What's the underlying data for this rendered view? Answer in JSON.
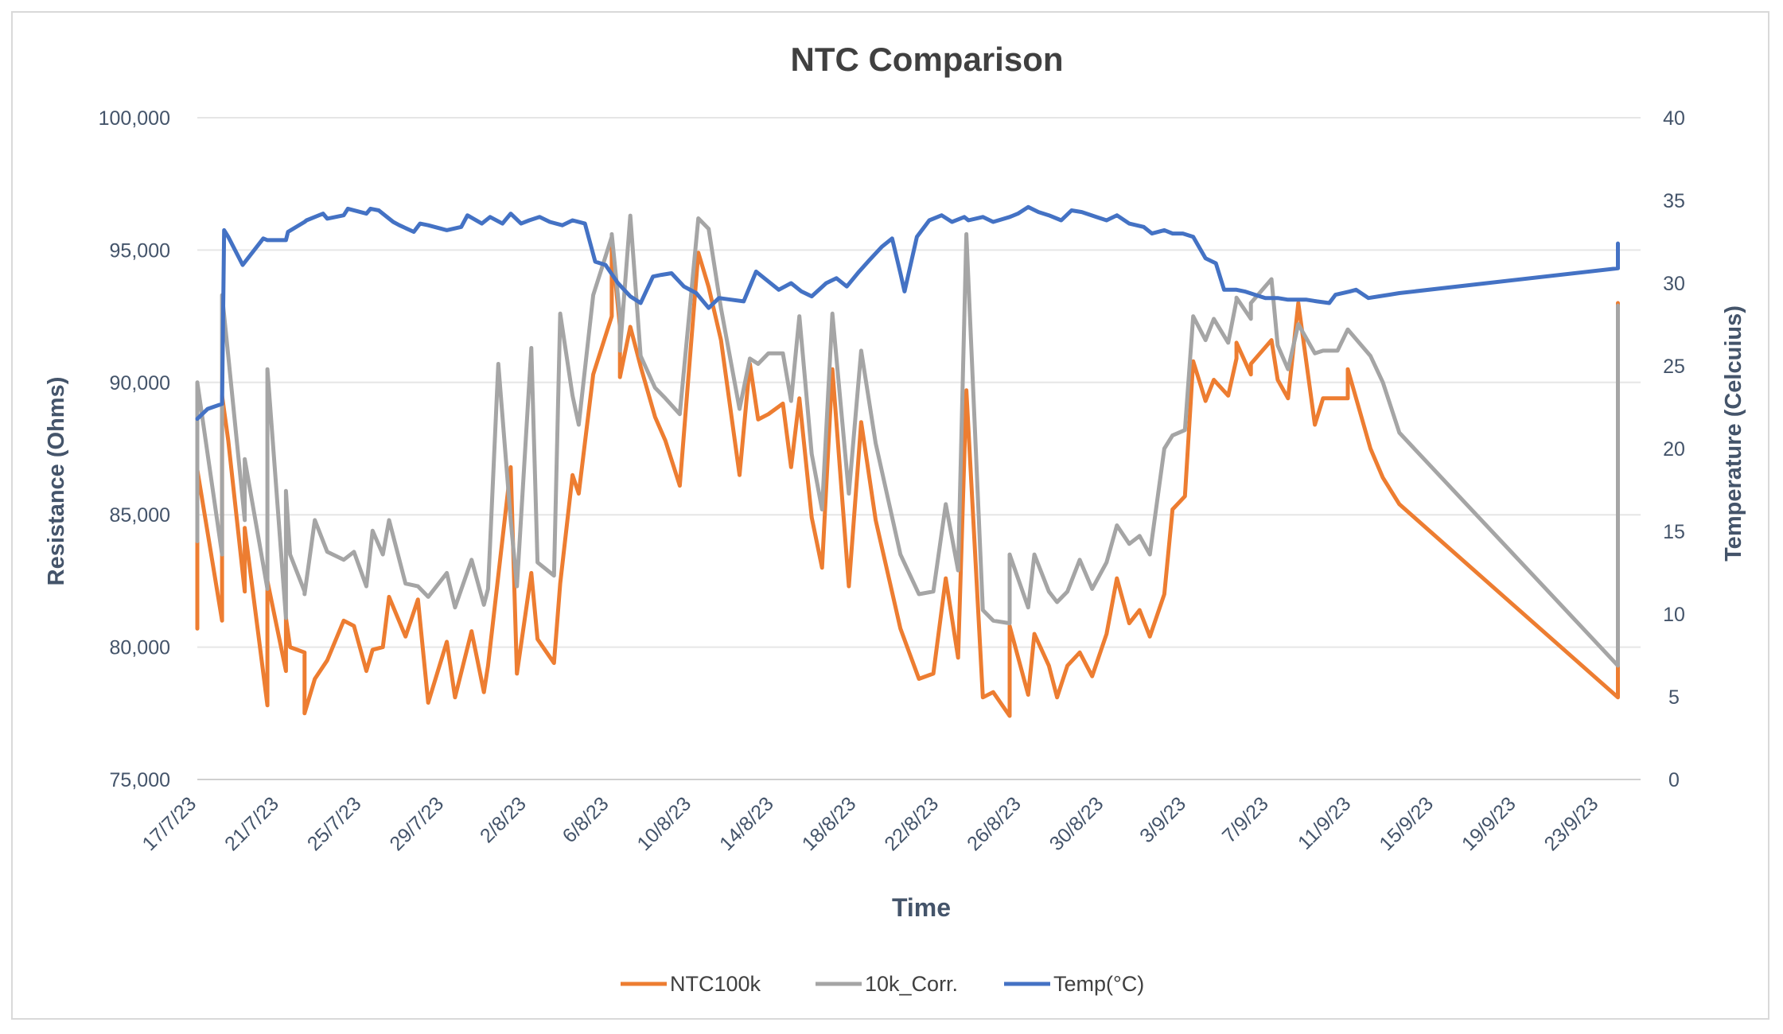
{
  "chart_data": {
    "type": "line",
    "title": "NTC Comparison",
    "xlabel": "Time",
    "ylabel": "Resistance (Ohms)",
    "y2label": "Temperature (Celcuius)",
    "ylim": [
      75000,
      100000
    ],
    "y2lim": [
      0,
      40
    ],
    "yticks": [
      "75,000",
      "80,000",
      "85,000",
      "90,000",
      "95,000",
      "100,000"
    ],
    "yticks_values": [
      75000,
      80000,
      85000,
      90000,
      95000,
      100000
    ],
    "y2ticks": [
      "0",
      "5",
      "10",
      "15",
      "20",
      "25",
      "30",
      "35",
      "40"
    ],
    "y2ticks_values": [
      0,
      5,
      10,
      15,
      20,
      25,
      30,
      35,
      40
    ],
    "xlim": [
      0,
      70
    ],
    "x_units": "days since 17/7/23",
    "xticks": [
      "17/7/23",
      "21/7/23",
      "25/7/23",
      "29/7/23",
      "2/8/23",
      "6/8/23",
      "10/8/23",
      "14/8/23",
      "18/8/23",
      "22/8/23",
      "26/8/23",
      "30/8/23",
      "3/9/23",
      "7/9/23",
      "11/9/23",
      "15/9/23",
      "19/9/23",
      "23/9/23"
    ],
    "xticks_values": [
      0,
      4,
      8,
      12,
      16,
      20,
      24,
      28,
      32,
      36,
      40,
      44,
      48,
      52,
      56,
      60,
      64,
      68
    ],
    "grid": true,
    "legend": "bottom",
    "series": [
      {
        "name": "NTC100k",
        "color": "#ED7D31",
        "axis": "left",
        "x": [
          0,
          0,
          1.2,
          1.2,
          1.5,
          2.3,
          2.3,
          3.4,
          3.4,
          4.3,
          4.3,
          4.5,
          5.2,
          5.2,
          5.7,
          6.3,
          7.1,
          7.6,
          8.2,
          8.5,
          9,
          9.3,
          10.1,
          10.7,
          11.2,
          12.1,
          12.5,
          13.3,
          13.9,
          14.1,
          14.6,
          15.2,
          15.5,
          16.2,
          16.5,
          17.3,
          17.6,
          18.2,
          18.5,
          19.2,
          20.1,
          20.1,
          20.5,
          20.5,
          21,
          21.5,
          22.2,
          22.7,
          23.4,
          24.3,
          24.8,
          25.4,
          26.3,
          26.8,
          27.2,
          27.7,
          28.4,
          28.8,
          29.2,
          29.8,
          30.3,
          30.8,
          31.6,
          32.2,
          32.9,
          34.1,
          35,
          35.7,
          36.3,
          36.9,
          37.3,
          38.1,
          38.6,
          39.4,
          39.4,
          40.3,
          40.6,
          41.3,
          41.7,
          42.2,
          42.8,
          43.4,
          44.1,
          44.6,
          45.2,
          45.7,
          46.2,
          46.9,
          47.3,
          47.9,
          48.3,
          48.9,
          49.3,
          50,
          50.4,
          50.4,
          51.1,
          51.1,
          52.1,
          52.4,
          52.9,
          53.4,
          54.2,
          54.6,
          55.3,
          55.8,
          55.8,
          56.9,
          57.5,
          58.3,
          68.9,
          68.9
        ],
        "values": [
          80700,
          86700,
          81000,
          89500,
          87800,
          82100,
          84500,
          77800,
          82500,
          79100,
          81100,
          80000,
          79800,
          77500,
          78800,
          79500,
          81000,
          80800,
          79100,
          79900,
          80000,
          81900,
          80400,
          81800,
          77900,
          80200,
          78100,
          80600,
          78300,
          79300,
          82700,
          86800,
          79000,
          82800,
          80300,
          79400,
          82400,
          86500,
          85800,
          90300,
          92500,
          95200,
          92100,
          90200,
          92100,
          90600,
          88700,
          87800,
          86100,
          94900,
          93600,
          91600,
          86500,
          90700,
          88600,
          88800,
          89200,
          86800,
          89400,
          84900,
          83000,
          90500,
          82300,
          88500,
          84800,
          80700,
          78800,
          79000,
          82600,
          79600,
          89700,
          78100,
          78300,
          77400,
          80800,
          78200,
          80500,
          79300,
          78100,
          79300,
          79800,
          78900,
          80500,
          82600,
          80900,
          81400,
          80400,
          82000,
          85200,
          85700,
          90800,
          89300,
          90100,
          89500,
          90900,
          91500,
          90300,
          90700,
          91600,
          90100,
          89400,
          93000,
          88400,
          89400,
          89400,
          89400,
          90500,
          87500,
          86400,
          85400,
          78100,
          93000
        ]
      },
      {
        "name": "10k_Corr.",
        "color": "#A5A5A5",
        "axis": "left",
        "x": [
          0,
          0,
          1.2,
          1.2,
          1.5,
          2.3,
          2.3,
          3.4,
          3.4,
          4.3,
          4.3,
          4.5,
          5.2,
          5.2,
          5.7,
          6.3,
          7.1,
          7.6,
          8.2,
          8.5,
          9,
          9.3,
          10.1,
          10.7,
          11.2,
          12.1,
          12.5,
          13.3,
          13.9,
          14.1,
          14.6,
          15.2,
          15.5,
          16.2,
          16.5,
          17.3,
          17.6,
          18.2,
          18.5,
          19.2,
          20.1,
          20.1,
          20.5,
          20.5,
          21,
          21.5,
          22.2,
          22.7,
          23.4,
          24.3,
          24.8,
          25.4,
          26.3,
          26.8,
          27.2,
          27.7,
          28.4,
          28.8,
          29.2,
          29.8,
          30.3,
          30.8,
          31.6,
          32.2,
          32.9,
          34.1,
          35,
          35.7,
          36.3,
          36.9,
          37.3,
          38.1,
          38.6,
          39.4,
          39.4,
          40.3,
          40.6,
          41.3,
          41.7,
          42.2,
          42.8,
          43.4,
          44.1,
          44.6,
          45.2,
          45.7,
          46.2,
          46.9,
          47.3,
          47.9,
          48.3,
          48.9,
          49.3,
          50,
          50.4,
          50.4,
          51.1,
          51.1,
          52.1,
          52.4,
          52.9,
          53.4,
          54.2,
          54.6,
          55.3,
          55.8,
          55.8,
          56.9,
          57.5,
          58.3,
          68.9,
          68.9
        ],
        "values": [
          84000,
          90000,
          83500,
          93300,
          91000,
          84800,
          87100,
          82200,
          90500,
          81100,
          85900,
          83500,
          82100,
          82000,
          84800,
          83600,
          83300,
          83600,
          82300,
          84400,
          83500,
          84800,
          82400,
          82300,
          81900,
          82800,
          81500,
          83300,
          81600,
          82200,
          90700,
          84800,
          82300,
          91300,
          83200,
          82700,
          92600,
          89500,
          88400,
          93300,
          95500,
          95600,
          92500,
          91200,
          96300,
          91000,
          89800,
          89400,
          88800,
          96200,
          95800,
          92800,
          89000,
          90900,
          90700,
          91100,
          91100,
          89300,
          92500,
          87300,
          85200,
          92600,
          85800,
          91200,
          87700,
          83500,
          82000,
          82100,
          85400,
          82900,
          95600,
          81400,
          81000,
          80900,
          83500,
          81500,
          83500,
          82100,
          81700,
          82100,
          83300,
          82200,
          83200,
          84600,
          83900,
          84200,
          83500,
          87500,
          88000,
          88200,
          92500,
          91600,
          92400,
          91500,
          93100,
          93200,
          92400,
          93000,
          93900,
          91400,
          90500,
          92200,
          91100,
          91200,
          91200,
          92000,
          92000,
          91000,
          90000,
          88100,
          79300,
          92900
        ]
      },
      {
        "name": "Temp(°C)",
        "color": "#4472C4",
        "axis": "right",
        "x": [
          0,
          0.5,
          1.2,
          1.3,
          1.5,
          2.2,
          3.2,
          3.4,
          4.3,
          4.4,
          5.2,
          5.3,
          6.1,
          6.3,
          7.1,
          7.3,
          8.2,
          8.4,
          8.8,
          9.5,
          9.8,
          10.5,
          10.8,
          11.2,
          12.1,
          12.8,
          13.1,
          13.8,
          14.2,
          14.8,
          15.2,
          15.7,
          16.1,
          16.6,
          17.1,
          17.7,
          18.2,
          18.8,
          19.3,
          19.8,
          20.4,
          21,
          21.5,
          22.1,
          22.5,
          23,
          23.6,
          24.2,
          24.8,
          25.3,
          25.9,
          26.5,
          27.1,
          27.6,
          28.2,
          28.8,
          29.3,
          29.8,
          30.5,
          31,
          31.5,
          32.1,
          32.6,
          33.2,
          33.7,
          34.1,
          34.3,
          34.9,
          35.5,
          36.1,
          36.6,
          37.2,
          37.4,
          38.1,
          38.6,
          39.4,
          39.8,
          40.3,
          40.8,
          41.3,
          41.9,
          42.4,
          42.9,
          43.6,
          44.1,
          44.6,
          45.2,
          45.9,
          46.3,
          46.9,
          47.3,
          47.8,
          48.3,
          48.9,
          49.4,
          49.8,
          50.4,
          50.8,
          51.3,
          51.8,
          52.4,
          52.9,
          53.4,
          53.8,
          54.3,
          54.9,
          55.2,
          55.9,
          56.2,
          56.8,
          57.3,
          57.8,
          58.3,
          68.9,
          68.9
        ],
        "values": [
          21.8,
          22.4,
          22.7,
          33.2,
          32.8,
          31.1,
          32.7,
          32.6,
          32.6,
          33.1,
          33.7,
          33.8,
          34.2,
          33.9,
          34.1,
          34.5,
          34.2,
          34.5,
          34.4,
          33.7,
          33.5,
          33.1,
          33.6,
          33.5,
          33.2,
          33.4,
          34.1,
          33.6,
          34.0,
          33.6,
          34.2,
          33.6,
          33.8,
          34.0,
          33.7,
          33.5,
          33.8,
          33.6,
          31.3,
          31.1,
          30.0,
          29.2,
          28.8,
          30.4,
          30.5,
          30.6,
          29.8,
          29.4,
          28.5,
          29.1,
          29.0,
          28.9,
          30.7,
          30.2,
          29.6,
          30.0,
          29.5,
          29.2,
          30.0,
          30.3,
          29.8,
          30.7,
          31.4,
          32.2,
          32.7,
          30.6,
          29.5,
          32.8,
          33.8,
          34.1,
          33.7,
          34.0,
          33.8,
          34.0,
          33.7,
          34.0,
          34.2,
          34.6,
          34.3,
          34.1,
          33.8,
          34.4,
          34.3,
          34.0,
          33.8,
          34.1,
          33.6,
          33.4,
          33.0,
          33.2,
          33.0,
          33.0,
          32.8,
          31.5,
          31.2,
          29.6,
          29.6,
          29.5,
          29.3,
          29.1,
          29.1,
          29.0,
          29.0,
          29.0,
          28.9,
          28.8,
          29.3,
          29.5,
          29.6,
          29.1,
          29.2,
          29.3,
          29.4,
          30.9,
          32.4
        ]
      }
    ]
  }
}
